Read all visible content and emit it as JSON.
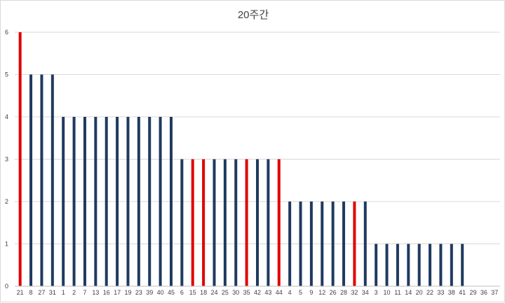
{
  "chart_data": {
    "type": "bar",
    "title": "20주간",
    "xlabel": "",
    "ylabel": "",
    "ylim": [
      0,
      6
    ],
    "yticks": [
      0,
      1,
      2,
      3,
      4,
      5,
      6
    ],
    "grid": true,
    "legend": "none",
    "colors": {
      "default": "#1f3a5f",
      "highlight": "#e00000",
      "grid": "#d9d9d9",
      "axis": "#bfbfbf"
    },
    "categories": [
      "21",
      "8",
      "27",
      "31",
      "1",
      "2",
      "7",
      "13",
      "16",
      "17",
      "19",
      "23",
      "39",
      "40",
      "45",
      "6",
      "15",
      "18",
      "24",
      "25",
      "30",
      "35",
      "42",
      "43",
      "44",
      "4",
      "5",
      "9",
      "12",
      "26",
      "28",
      "32",
      "34",
      "3",
      "10",
      "11",
      "14",
      "20",
      "22",
      "33",
      "38",
      "41",
      "29",
      "36",
      "37"
    ],
    "values": [
      6,
      5,
      5,
      5,
      4,
      4,
      4,
      4,
      4,
      4,
      4,
      4,
      4,
      4,
      4,
      3,
      3,
      3,
      3,
      3,
      3,
      3,
      3,
      3,
      3,
      2,
      2,
      2,
      2,
      2,
      2,
      2,
      2,
      1,
      1,
      1,
      1,
      1,
      1,
      1,
      1,
      1,
      0,
      0,
      0
    ],
    "highlighted": [
      "21",
      "15",
      "18",
      "35",
      "44",
      "32"
    ]
  }
}
